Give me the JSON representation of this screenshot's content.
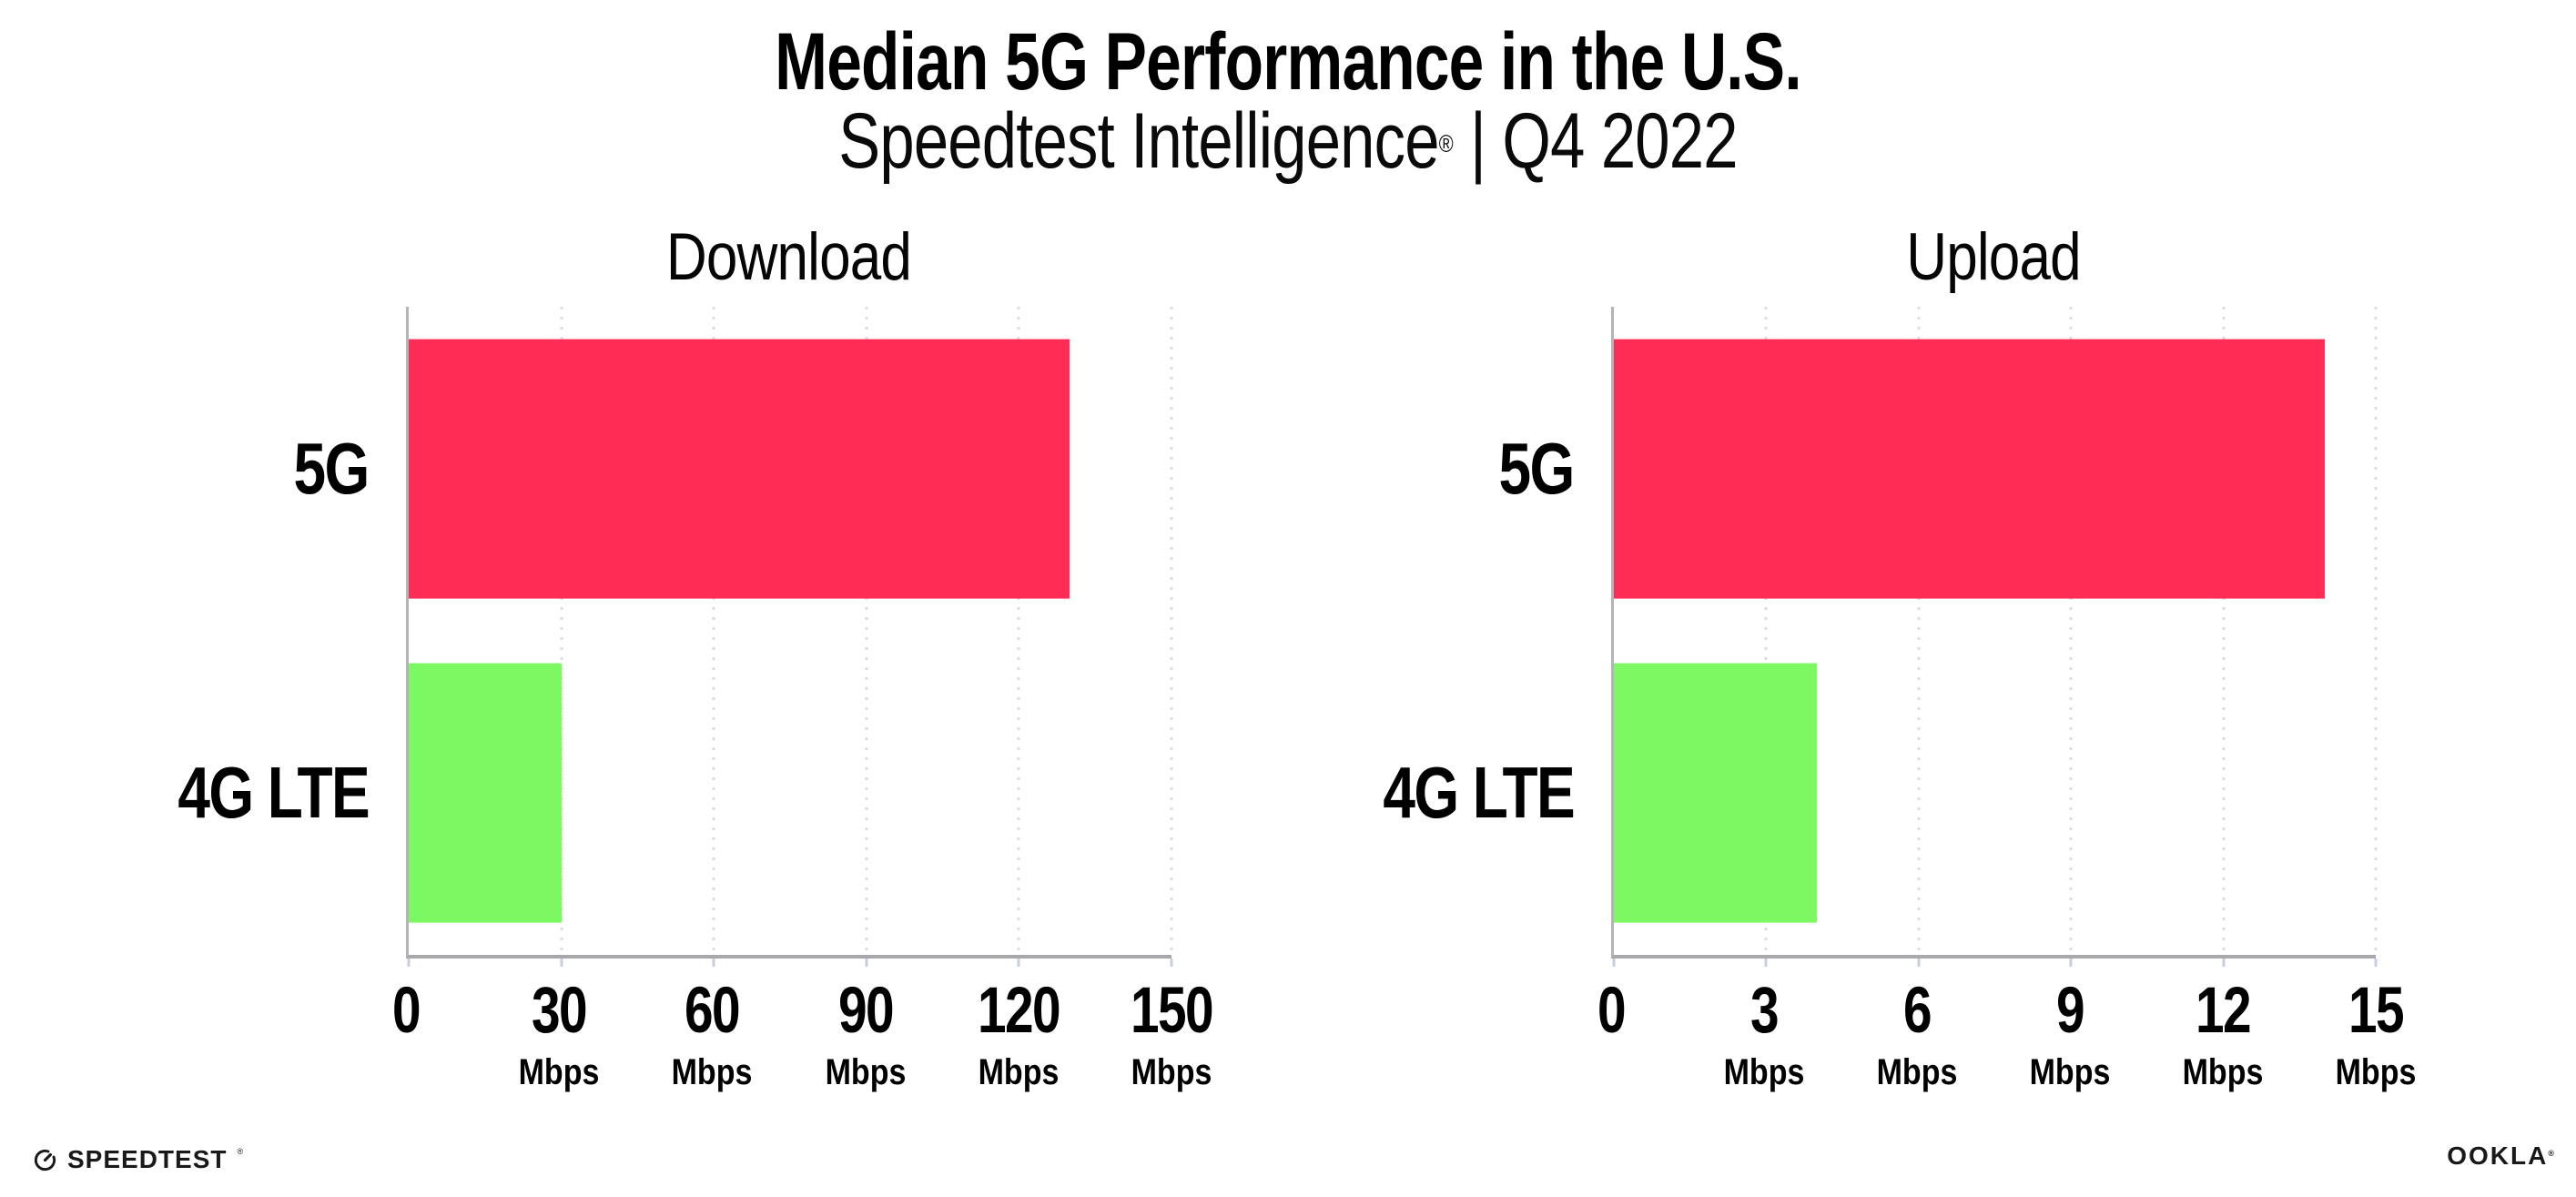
{
  "header": {
    "title": "Median 5G Performance in the U.S.",
    "subtitle_product": "Speedtest Intelligence",
    "subtitle_reg": "®",
    "subtitle_sep": " | ",
    "subtitle_period": "Q4 2022"
  },
  "chart_data": [
    {
      "type": "bar",
      "orientation": "horizontal",
      "title": "Download",
      "categories": [
        "5G",
        "4G LTE"
      ],
      "values": [
        130,
        30
      ],
      "unit": "Mbps",
      "xlim": [
        0,
        150
      ],
      "xticks": [
        0,
        30,
        60,
        90,
        120,
        150
      ],
      "grid": "dotted-vertical",
      "legend": "none",
      "series_colors": [
        "#FF2D55",
        "#7CF962"
      ]
    },
    {
      "type": "bar",
      "orientation": "horizontal",
      "title": "Upload",
      "categories": [
        "5G",
        "4G LTE"
      ],
      "values": [
        14,
        4
      ],
      "unit": "Mbps",
      "xlim": [
        0,
        15
      ],
      "xticks": [
        0,
        3,
        6,
        9,
        12,
        15
      ],
      "grid": "dotted-vertical",
      "legend": "none",
      "series_colors": [
        "#FF2D55",
        "#7CF962"
      ]
    }
  ],
  "footer": {
    "speedtest_label": "SPEEDTEST",
    "speedtest_reg": "®",
    "ookla_label": "OOKLA",
    "ookla_reg": "®"
  },
  "colors": {
    "bar_5g": "#FF2D55",
    "bar_4g_lte": "#7CF962",
    "gridline": "#dcdce6",
    "axis": "#a8a8ac",
    "tick": "#c9cde0",
    "text": "#000000"
  }
}
